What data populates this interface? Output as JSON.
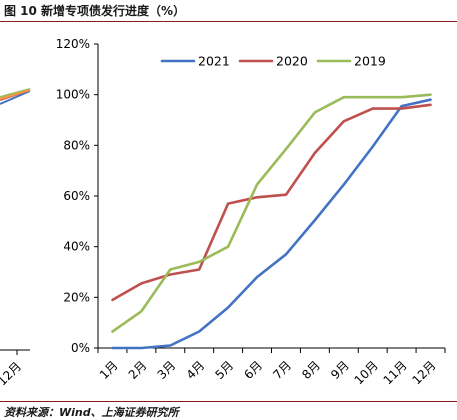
{
  "figure": {
    "title": "图 10  新增专项债发行进度（%）",
    "source": "资料来源：Wind、上海证券研究所"
  },
  "neighbor_chart": {
    "tick_label": "12月"
  },
  "chart_data": {
    "type": "line",
    "title": "",
    "xlabel": "",
    "ylabel": "",
    "categories": [
      "1月",
      "2月",
      "3月",
      "4月",
      "5月",
      "6月",
      "7月",
      "8月",
      "9月",
      "10月",
      "11月",
      "12月"
    ],
    "ylim": [
      0,
      120
    ],
    "yticks": [
      0,
      20,
      40,
      60,
      80,
      100,
      120
    ],
    "ytick_labels": [
      "0%",
      "20%",
      "40%",
      "60%",
      "80%",
      "100%",
      "120%"
    ],
    "grid": false,
    "legend": "top-right",
    "series": [
      {
        "name": "2021",
        "color": "#4472c4",
        "values": [
          0,
          0,
          1,
          6.5,
          16,
          28,
          37,
          50.5,
          64.5,
          79.5,
          95.5,
          98
        ]
      },
      {
        "name": "2020",
        "color": "#c0504d",
        "values": [
          19,
          25.5,
          29,
          31,
          57,
          59.5,
          60.5,
          77,
          89.5,
          94.5,
          94.5,
          96
        ]
      },
      {
        "name": "2019",
        "color": "#9bbb59",
        "values": [
          6.5,
          14.5,
          31,
          34,
          40,
          64.5,
          78.5,
          93,
          99,
          99,
          99,
          100
        ]
      }
    ]
  }
}
